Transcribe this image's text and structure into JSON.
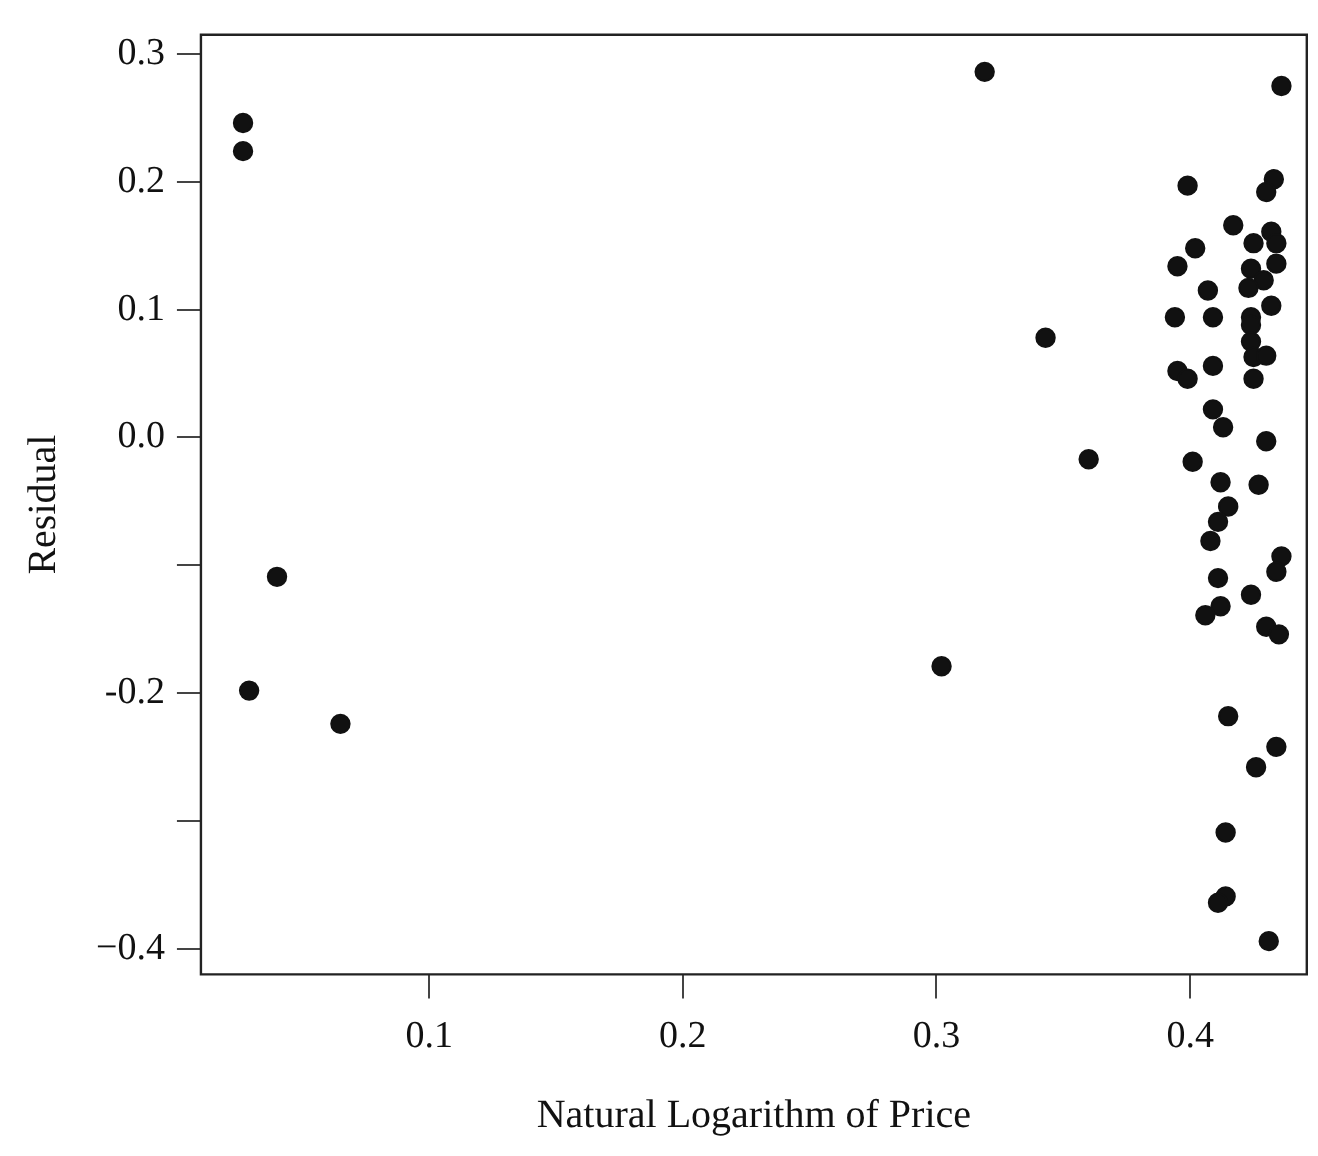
{
  "chart_data": {
    "type": "scatter",
    "xlabel": "Natural Logarithm of Price",
    "ylabel": "Residual",
    "marker": "circle",
    "grid": false,
    "legend": false,
    "xlim": [
      0.01,
      0.446
    ],
    "ylim": [
      -0.42,
      0.315
    ],
    "xticks": [
      0.1,
      0.2,
      0.3,
      0.4
    ],
    "yticks": [
      {
        "value": -0.4,
        "label": "−0.4"
      },
      {
        "value": -0.3,
        "label": null
      },
      -0.2,
      {
        "value": -0.1,
        "label": null
      },
      {
        "value": 0,
        "label": "0.0"
      },
      0.1,
      0.2,
      0.3
    ],
    "series": [
      {
        "color": "#111111",
        "x": [
          0.0266,
          0.0266,
          0.04,
          0.029,
          0.065,
          0.319,
          0.436,
          0.399,
          0.433,
          0.43,
          0.417,
          0.432,
          0.425,
          0.434,
          0.402,
          0.395,
          0.424,
          0.434,
          0.429,
          0.407,
          0.423,
          0.432,
          0.394,
          0.409,
          0.424,
          0.424,
          0.343,
          0.424,
          0.425,
          0.43,
          0.409,
          0.395,
          0.399,
          0.425,
          0.409,
          0.413,
          0.43,
          0.36,
          0.401,
          0.412,
          0.427,
          0.415,
          0.411,
          0.408,
          0.436,
          0.434,
          0.411,
          0.424,
          0.412,
          0.406,
          0.43,
          0.435,
          0.302,
          0.415,
          0.434,
          0.426,
          0.414,
          0.414,
          0.411,
          0.431
        ],
        "values": [
          0.246,
          0.224,
          -0.109,
          -0.198,
          -0.224,
          0.286,
          0.275,
          0.197,
          0.202,
          0.192,
          0.166,
          0.161,
          0.152,
          0.152,
          0.148,
          0.134,
          0.132,
          0.136,
          0.123,
          0.115,
          0.117,
          0.103,
          0.094,
          0.094,
          0.094,
          0.088,
          0.078,
          0.075,
          0.063,
          0.064,
          0.056,
          0.052,
          0.046,
          0.046,
          0.022,
          0.008,
          -0.003,
          -0.017,
          -0.019,
          -0.035,
          -0.037,
          -0.054,
          -0.066,
          -0.081,
          -0.093,
          -0.105,
          -0.11,
          -0.123,
          -0.132,
          -0.139,
          -0.148,
          -0.154,
          -0.179,
          -0.218,
          -0.242,
          -0.258,
          -0.309,
          -0.359,
          -0.364,
          -0.394
        ]
      }
    ]
  }
}
